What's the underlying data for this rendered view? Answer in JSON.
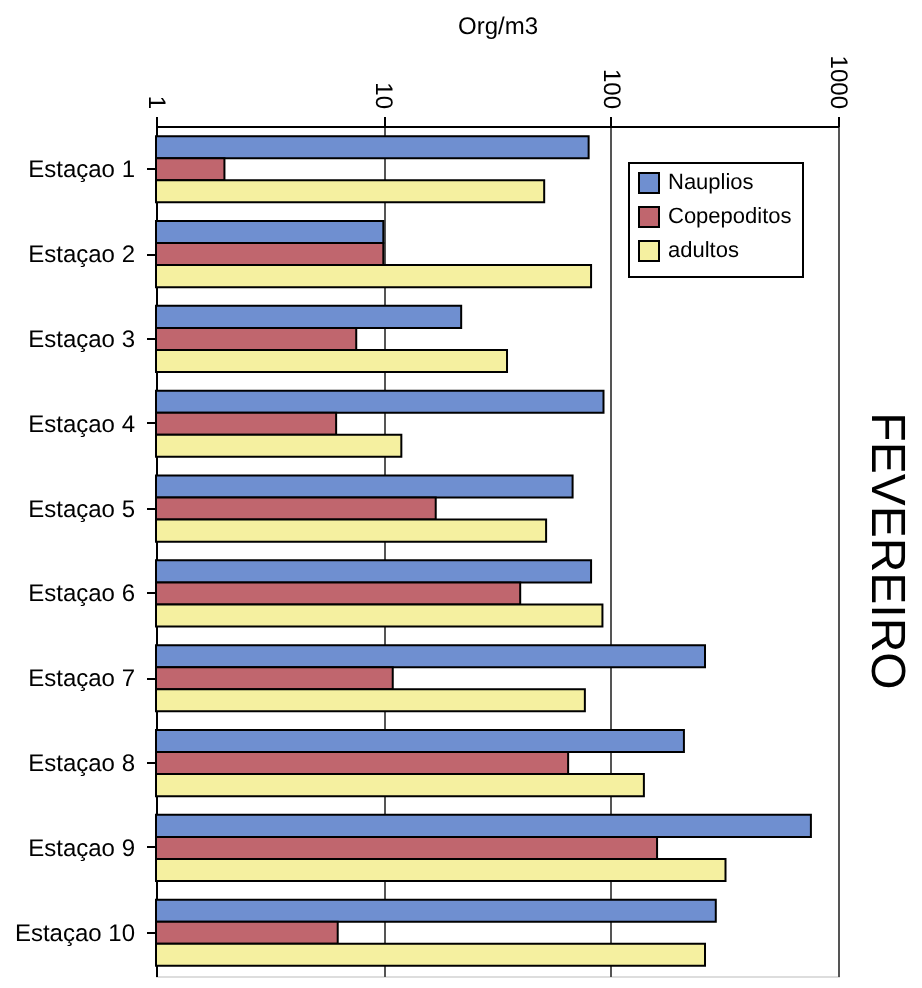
{
  "chart_data": {
    "type": "bar",
    "orientation": "horizontal",
    "title": "FEVEREIRO",
    "xlabel": "Org/m3",
    "categories": [
      "Estaçao 1",
      "Estaçao 2",
      "Estaçao 3",
      "Estaçao 4",
      "Estaçao 5",
      "Estaçao 6",
      "Estaçao 7",
      "Estaçao 8",
      "Estaçao 9",
      "Estaçao 10"
    ],
    "series": [
      {
        "name": "Nauplios",
        "color": "#6f8fd0",
        "values": [
          80,
          10,
          22,
          93,
          68,
          82,
          260,
          210,
          760,
          290
        ]
      },
      {
        "name": "Copepoditos",
        "color": "#c0666e",
        "values": [
          2.0,
          10,
          7.6,
          6.2,
          17,
          40,
          11,
          65,
          160,
          6.3
        ]
      },
      {
        "name": "adultos",
        "color": "#f5f0a0",
        "values": [
          51,
          82,
          35,
          12,
          52,
          92,
          77,
          140,
          320,
          260
        ]
      }
    ],
    "log": "x",
    "xlim": [
      1,
      1000
    ],
    "xticks": [
      1,
      10,
      100,
      1000
    ],
    "grid": "x",
    "legend": "top right"
  }
}
